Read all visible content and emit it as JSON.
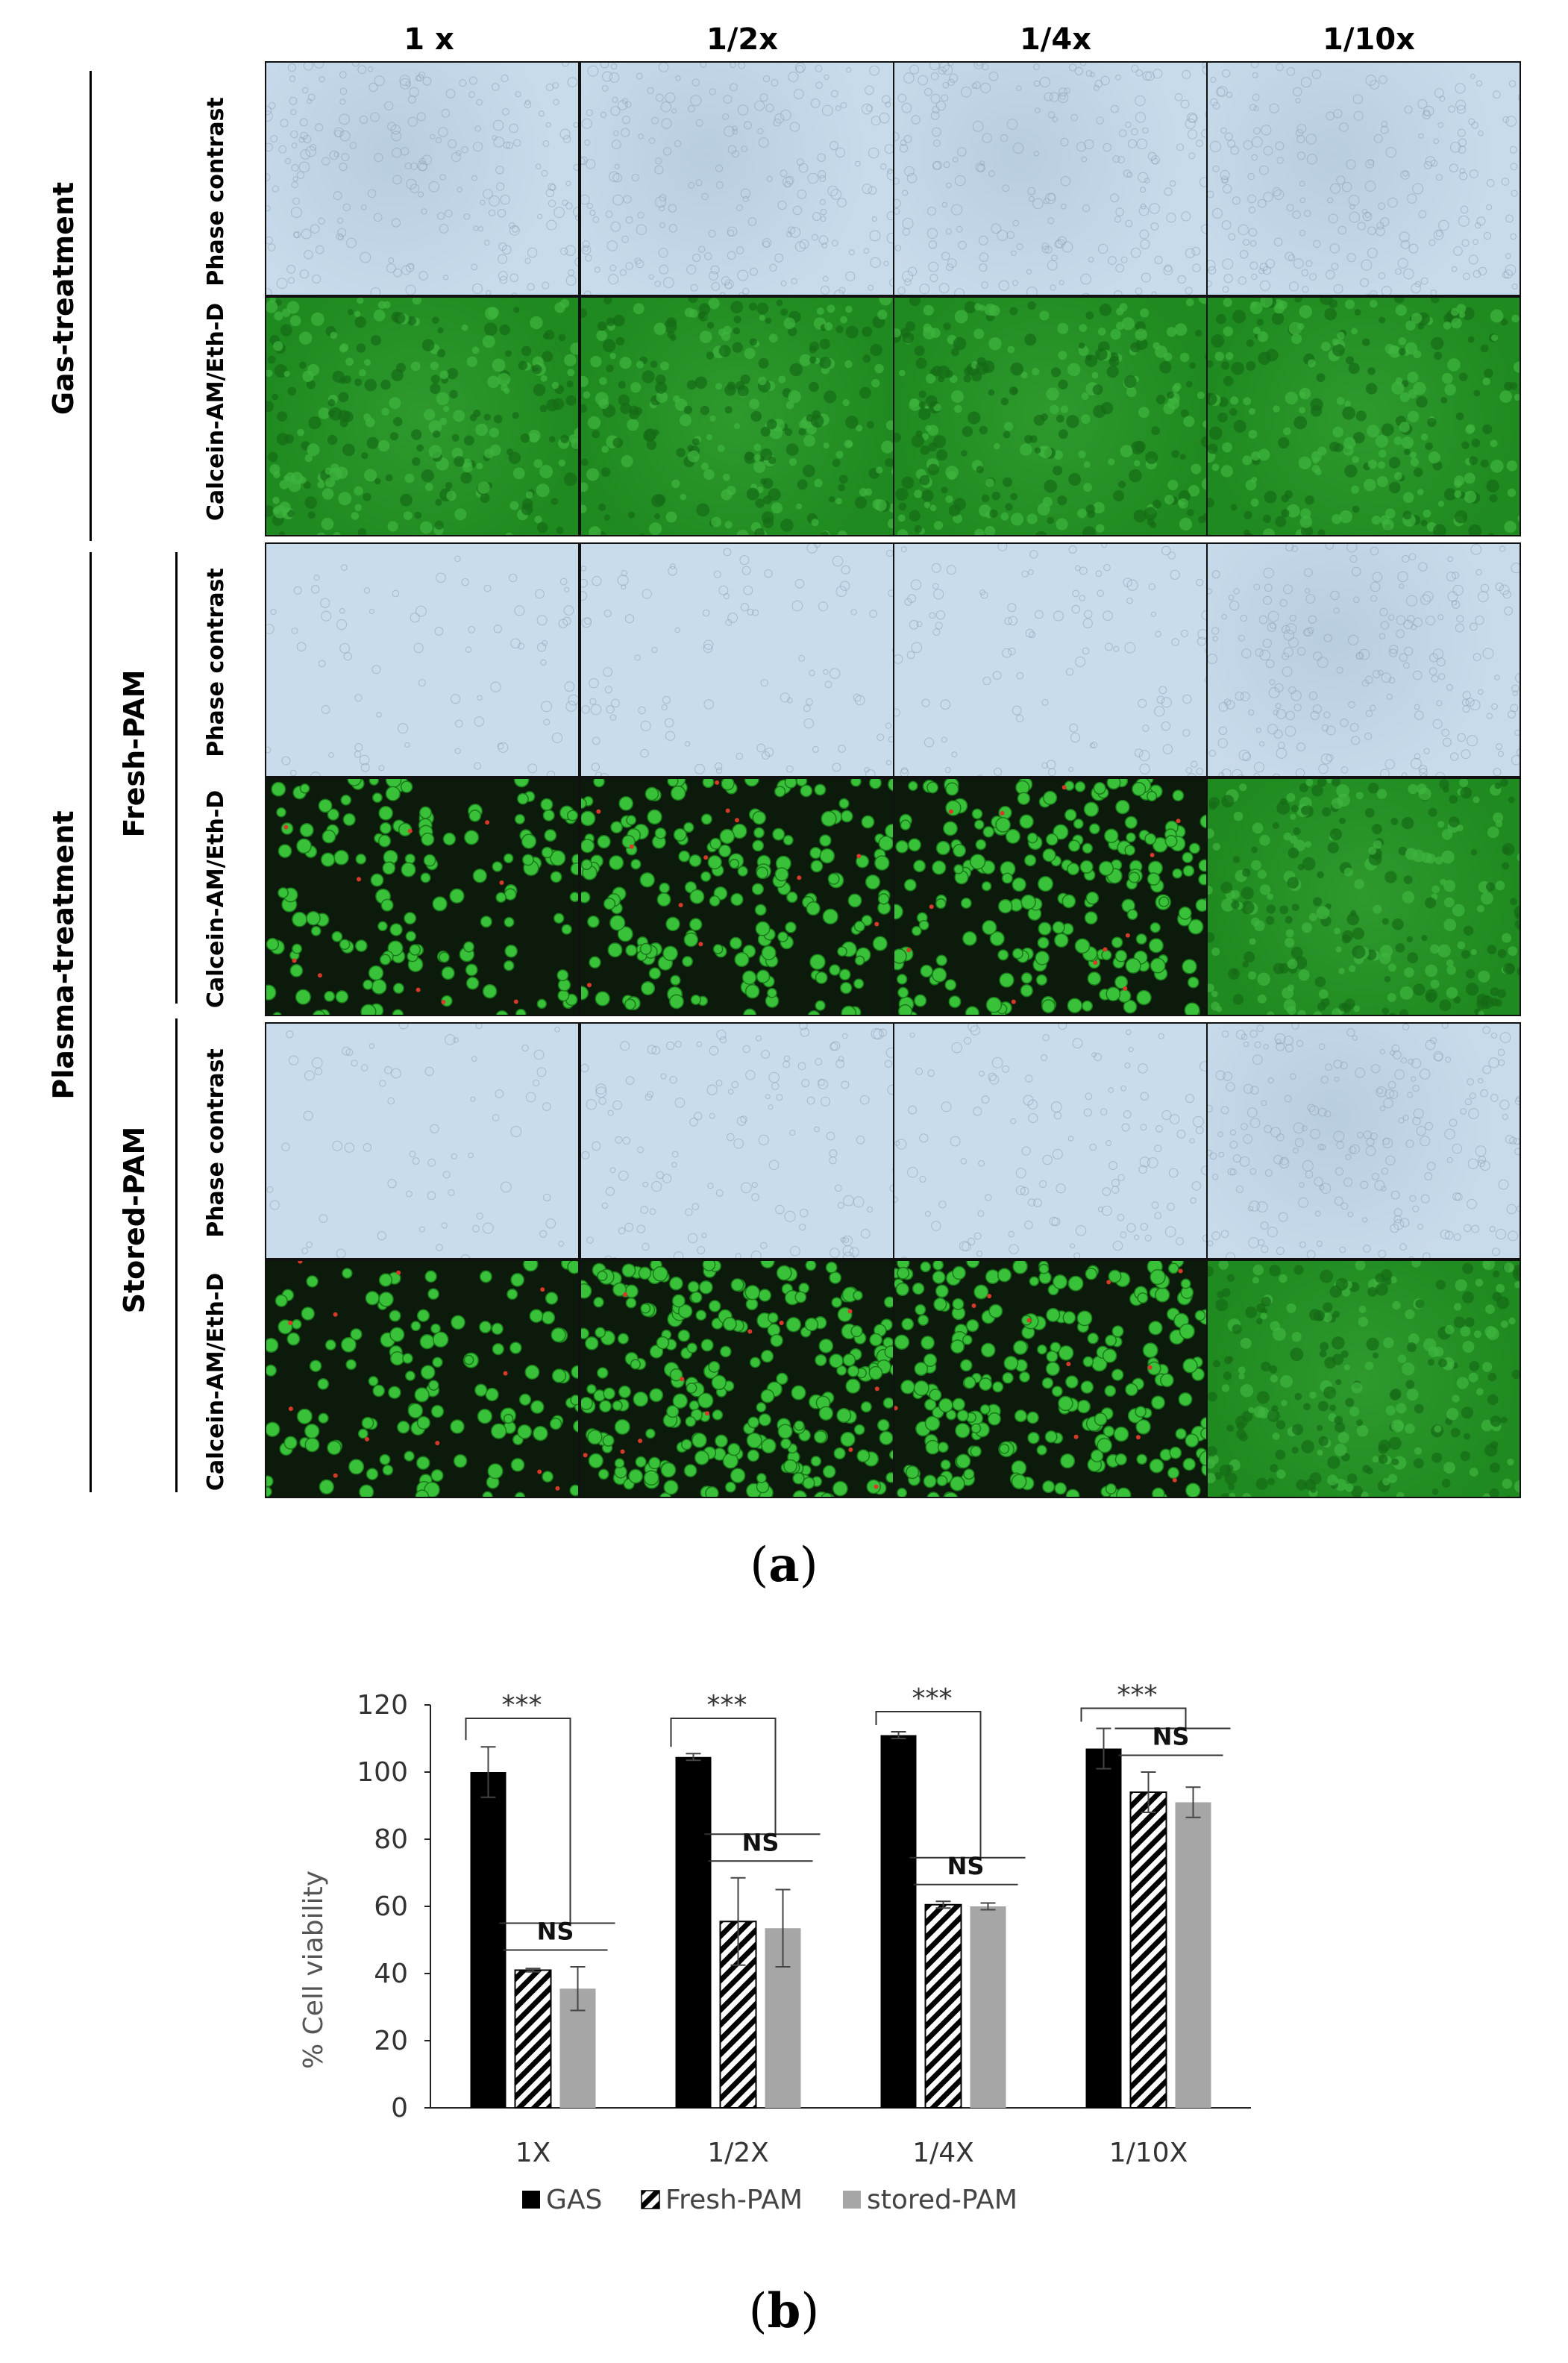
{
  "panel_a": {
    "column_labels": [
      "1 x",
      "1/2x",
      "1/4x",
      "1/10x"
    ],
    "groups": [
      {
        "label": "Gas-treatment",
        "sub_rows": [
          "Phase contrast",
          "Calcein-AM/Eth-D"
        ]
      },
      {
        "label": "Fresh-PAM",
        "sub_rows": [
          "Phase contrast",
          "Calcein-AM/Eth-D"
        ]
      },
      {
        "label": "Stored-PAM",
        "sub_rows": [
          "Phase contrast",
          "Calcein-AM/Eth-D"
        ]
      }
    ],
    "outer_label": "Plasma-treatment",
    "letter_open": "(",
    "letter": "a",
    "letter_close": ")",
    "colors": {
      "phase": "#c9dcec",
      "fluor": "#1f8a1f",
      "dark": "#0b1a0b"
    },
    "cell_density": [
      [
        1.0,
        1.0,
        1.0,
        1.0
      ],
      [
        1.0,
        1.0,
        1.0,
        1.0
      ],
      [
        0.35,
        0.45,
        0.5,
        1.0
      ],
      [
        0.35,
        0.45,
        0.5,
        1.0
      ],
      [
        0.3,
        0.6,
        0.55,
        1.0
      ],
      [
        0.3,
        0.6,
        0.55,
        1.0
      ]
    ]
  },
  "chart_data": {
    "type": "bar",
    "categories": [
      "1X",
      "1/2X",
      "1/4X",
      "1/10X"
    ],
    "series": [
      {
        "name": "GAS",
        "values": [
          100,
          104.5,
          111,
          107
        ],
        "errors": [
          7.5,
          1,
          1,
          6
        ],
        "color": "#000000",
        "pattern": "solid"
      },
      {
        "name": "Fresh-PAM",
        "values": [
          41,
          55.5,
          60.5,
          94
        ],
        "errors": [
          0.5,
          13,
          1,
          6
        ],
        "color": "#000000",
        "pattern": "hatch"
      },
      {
        "name": "stored-PAM",
        "values": [
          35.5,
          53.5,
          60,
          91
        ],
        "errors": [
          6.5,
          11.5,
          1,
          4.5
        ],
        "color": "#a6a6a6",
        "pattern": "solid"
      }
    ],
    "xlabel": "",
    "ylabel": "% Cell viability",
    "ylim": [
      0,
      120
    ],
    "yticks": [
      0,
      20,
      40,
      60,
      80,
      100,
      120
    ],
    "grid": false,
    "legend": "bottom",
    "annotations": {
      "major": [
        "***",
        "***",
        "***",
        "***"
      ],
      "minor": [
        "NS",
        "NS",
        "NS",
        "NS"
      ]
    }
  },
  "panel_b": {
    "letter_open": "(",
    "letter": "b",
    "letter_close": ")"
  }
}
